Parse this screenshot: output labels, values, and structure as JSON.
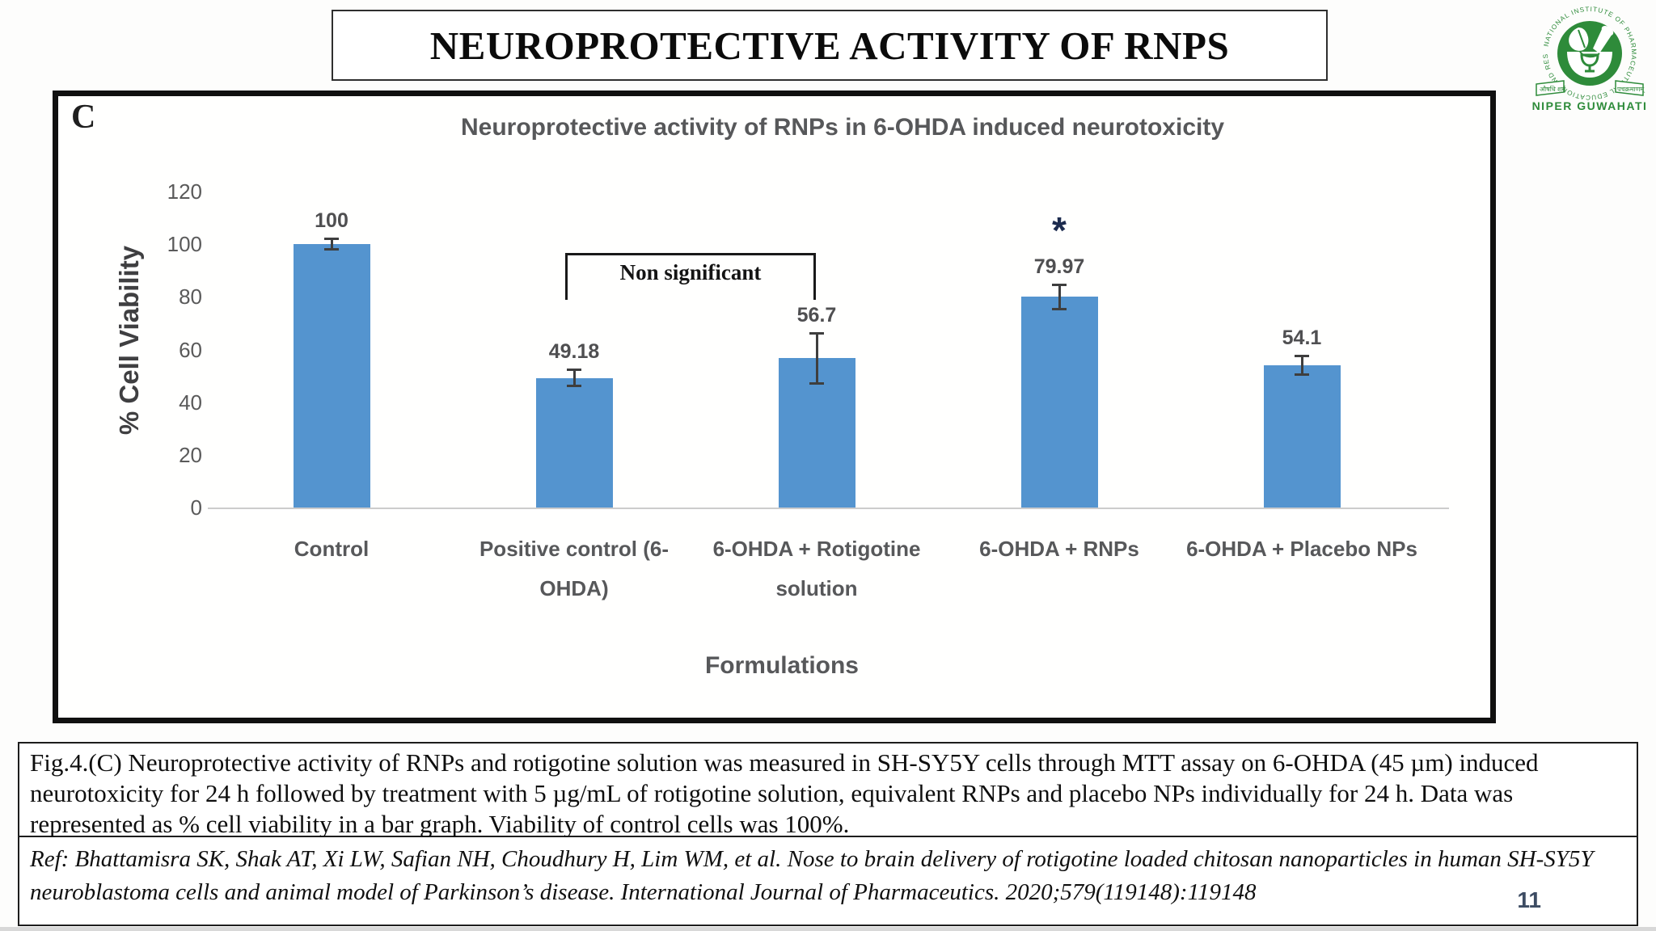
{
  "slide": {
    "title": "NEUROPROTECTIVE ACTIVITY OF RNPS",
    "page_number": "11"
  },
  "logo": {
    "ring_text": "NATIONAL INSTITUTE OF PHARMACEUTICAL EDUCATION AND RESEARCH",
    "caption": "NIPER GUWAHATI",
    "green": "#2e8b3a"
  },
  "figure": {
    "panel_label": "C",
    "caption": "Fig.4.(C) Neuroprotective activity of RNPs and rotigotine solution was measured in SH-SY5Y cells through MTT assay on 6-OHDA (45 µm) induced neurotoxicity for 24 h followed by treatment with 5 µg/mL of rotigotine solution, equivalent RNPs and placebo NPs individually for 24 h. Data was represented as % cell viability in a bar graph. Viability of control cells was 100%.",
    "reference": "Ref: Bhattamisra SK, Shak AT, Xi LW, Safian NH, Choudhury H, Lim WM, et al. Nose to brain delivery of rotigotine loaded chitosan nanoparticles in human SH-SY5Y neuroblastoma cells and animal model of Parkinson’s disease. International Journal of Pharmaceutics. 2020;579(119148):119148"
  },
  "chart_data": {
    "type": "bar",
    "title": "Neuroprotective activity of RNPs in 6-OHDA induced neurotoxicity",
    "xlabel": "Formulations",
    "ylabel": "% Cell Viability",
    "ylim": [
      0,
      120
    ],
    "yticks": [
      0,
      20,
      40,
      60,
      80,
      100,
      120
    ],
    "categories": [
      "Control",
      "Positive control (6-OHDA)",
      "6-OHDA + Rotigotine solution",
      "6-OHDA + RNPs",
      "6-OHDA + Placebo NPs"
    ],
    "tick_label_lines": [
      [
        "Control"
      ],
      [
        "Positive control (6-",
        "OHDA)"
      ],
      [
        "6-OHDA + Rotigotine",
        "solution"
      ],
      [
        "6-OHDA + RNPs"
      ],
      [
        "6-OHDA + Placebo NPs"
      ]
    ],
    "values": [
      100,
      49.18,
      56.7,
      79.97,
      54.1
    ],
    "value_labels": [
      "100",
      "49.18",
      "56.7",
      "79.97",
      "54.1"
    ],
    "errors": [
      2.5,
      3.5,
      10,
      5,
      4
    ],
    "bar_color": "#5494cf",
    "grid": false,
    "legend": false,
    "annotations": [
      {
        "type": "bracket",
        "label": "Non significant",
        "from_index": 1,
        "to_index": 2
      },
      {
        "type": "star",
        "label": "*",
        "index": 3
      }
    ]
  }
}
